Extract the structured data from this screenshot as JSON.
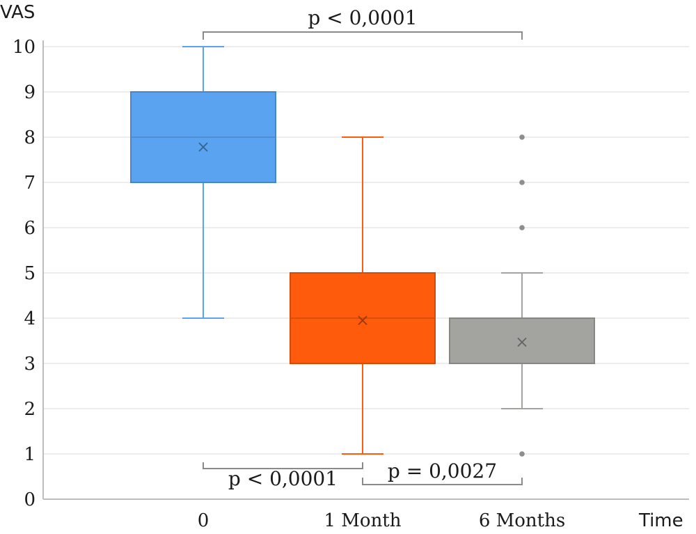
{
  "chart_data": {
    "type": "boxplot",
    "title": "",
    "ylabel": "VAS",
    "xlabel": "Time",
    "ylim": [
      0,
      10
    ],
    "yticks": [
      0,
      1,
      2,
      3,
      4,
      5,
      6,
      7,
      8,
      9,
      10
    ],
    "grid": true,
    "categories": [
      "0",
      "1 Month",
      "6 Months"
    ],
    "boxes": [
      {
        "category": "0",
        "min": 4,
        "q1": 7,
        "median": 8,
        "q3": 9,
        "max": 10,
        "mean": 7.78,
        "outliers": [],
        "color": "#5aa3f0"
      },
      {
        "category": "1 Month",
        "min": 1,
        "q1": 3,
        "median": 4,
        "q3": 5,
        "max": 8,
        "mean": 3.95,
        "outliers": [],
        "color": "#ff5b0d"
      },
      {
        "category": "6 Months",
        "min": 2,
        "q1": 3,
        "median": 3,
        "q3": 4,
        "max": 5,
        "mean": 3.47,
        "outliers": [
          8,
          7,
          6,
          1
        ],
        "color": "#a3a3a0"
      }
    ],
    "comparisons": [
      {
        "from": "0",
        "to": "6 Months",
        "label": "p < 0,0001",
        "position": "top"
      },
      {
        "from": "0",
        "to": "1 Month",
        "label": "p < 0,0001",
        "position": "bottom"
      },
      {
        "from": "1 Month",
        "to": "6 Months",
        "label": "p = 0,0027",
        "position": "bottom"
      }
    ]
  }
}
